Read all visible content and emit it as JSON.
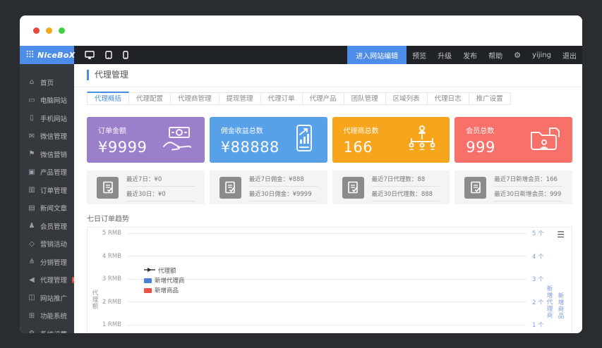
{
  "window": {
    "traffic_lights": [
      {
        "name": "close",
        "color": "#e8463c"
      },
      {
        "name": "minimize",
        "color": "#f3a51c"
      },
      {
        "name": "maximize",
        "color": "#3fd13f"
      }
    ]
  },
  "topbar": {
    "logo_text": "NiceBoX",
    "logo_bg": "#4e8cea",
    "device_toggles": [
      {
        "icon": "desktop-preview-icon"
      },
      {
        "icon": "tablet-preview-icon"
      },
      {
        "icon": "mobile-preview-icon"
      }
    ],
    "enter_edit_button": "进入网站编辑",
    "menu_links": [
      "预览",
      "升级",
      "发布",
      "帮助"
    ],
    "username": "yijing",
    "logout": "退出"
  },
  "sidebar": {
    "items": [
      {
        "label": "首页",
        "icon": "home-icon"
      },
      {
        "label": "电脑网站",
        "icon": "desktop-icon"
      },
      {
        "label": "手机网站",
        "icon": "mobile-icon"
      },
      {
        "label": "微信管理",
        "icon": "wechat-chat-icon"
      },
      {
        "label": "微信营销",
        "icon": "gamepad-icon"
      },
      {
        "label": "产品管理",
        "icon": "product-bag-icon"
      },
      {
        "label": "订单管理",
        "icon": "order-cart-icon"
      },
      {
        "label": "新闻文章",
        "icon": "news-doc-icon"
      },
      {
        "label": "会员管理",
        "icon": "member-user-icon"
      },
      {
        "label": "营销活动",
        "icon": "activity-tag-icon"
      },
      {
        "label": "分销管理",
        "icon": "distribution-tree-icon"
      },
      {
        "label": "代理管理",
        "icon": "agent-megaphone-icon",
        "badge": "NEW",
        "active": true
      },
      {
        "label": "网站推广",
        "icon": "promotion-chart-icon"
      },
      {
        "label": "功能系统",
        "icon": "function-system-icon"
      },
      {
        "label": "系统设置",
        "icon": "settings-gear-icon"
      }
    ]
  },
  "page": {
    "title": "代理管理",
    "tabs": [
      {
        "label": "代理概括",
        "active": true
      },
      {
        "label": "代理配置",
        "active": false
      },
      {
        "label": "代理商管理",
        "active": false
      },
      {
        "label": "提现管理",
        "active": false
      },
      {
        "label": "代理订单",
        "active": false
      },
      {
        "label": "代理产品",
        "active": false
      },
      {
        "label": "团队管理",
        "active": false
      },
      {
        "label": "区域列表",
        "active": false
      },
      {
        "label": "代理日志",
        "active": false
      },
      {
        "label": "推广设置",
        "active": false
      }
    ]
  },
  "stat_cards": [
    {
      "label": "订单金额",
      "value": "¥9999",
      "color": "#9b7fcb",
      "icon": "money-hand-icon"
    },
    {
      "label": "佣金收益总数",
      "value": "¥88888",
      "color": "#58a1e9",
      "icon": "phone-chart-icon"
    },
    {
      "label": "代理商总数",
      "value": "166",
      "color": "#f6a51d",
      "icon": "agents-tree-icon"
    },
    {
      "label": "会员总数",
      "value": "999",
      "color": "#f7716a",
      "icon": "member-folder-icon"
    }
  ],
  "summary_cards": [
    {
      "icon": "doc-check-icon",
      "lines": [
        "最近7日：¥0",
        "最近30日：¥0"
      ]
    },
    {
      "icon": "doc-check-icon",
      "lines": [
        "最近7日佣金：¥888",
        "最近30日佣金：¥9999"
      ]
    },
    {
      "icon": "doc-check-icon",
      "lines": [
        "最近7日代理数：88",
        "最近30日代理数：888"
      ]
    },
    {
      "icon": "doc-check-icon",
      "lines": [
        "最近7日新增会员：166",
        "最近30日新增会员：999"
      ]
    }
  ],
  "chart_data": {
    "type": "line",
    "title": "七日订单趋势",
    "left_axis": {
      "label": "代理额",
      "ticks": [
        "5 RMB",
        "4 RMB",
        "3 RMB",
        "2 RMB",
        "1 RMB"
      ]
    },
    "right_axis": {
      "labels": [
        "新增代理商",
        "新增商品"
      ],
      "ticks": [
        "5 个",
        "4 个",
        "3 个",
        "2 个",
        "1 个"
      ]
    },
    "legend": [
      {
        "name": "代理额",
        "marker": "line-arrow",
        "color": "#333333"
      },
      {
        "name": "新增代理商",
        "marker": "square",
        "color": "#4d7fd6"
      },
      {
        "name": "新增商品",
        "marker": "square",
        "color": "#e8544a"
      }
    ],
    "series": [],
    "grid": true,
    "legend_position": "inside-left"
  }
}
